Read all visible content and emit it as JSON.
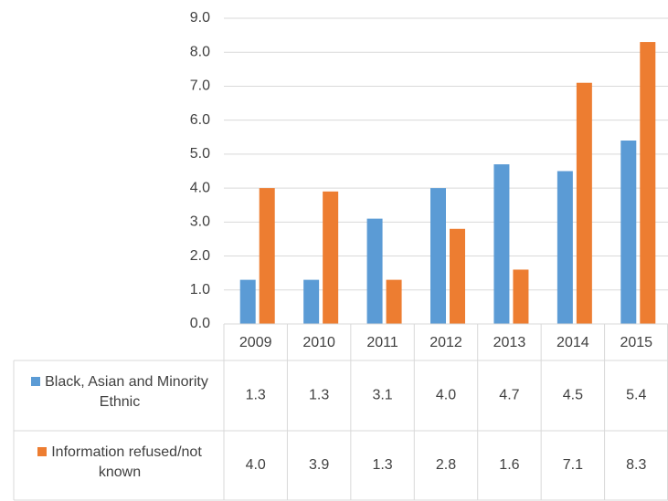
{
  "chart_data": {
    "type": "bar",
    "categories": [
      "2009",
      "2010",
      "2011",
      "2012",
      "2013",
      "2014",
      "2015"
    ],
    "series": [
      {
        "name": "Black, Asian and Minority Ethnic",
        "color": "#5b9bd5",
        "values": [
          1.3,
          1.3,
          3.1,
          4.0,
          4.7,
          4.5,
          5.4
        ],
        "value_labels": [
          "1.3",
          "1.3",
          "3.1",
          "4.0",
          "4.7",
          "4.5",
          "5.4"
        ]
      },
      {
        "name": "Information refused/not known",
        "color": "#ed7d31",
        "values": [
          4.0,
          3.9,
          1.3,
          2.8,
          1.6,
          7.1,
          8.3
        ],
        "value_labels": [
          "4.0",
          "3.9",
          "1.3",
          "2.8",
          "1.6",
          "7.1",
          "8.3"
        ]
      }
    ],
    "ylim": [
      0,
      9
    ],
    "yticks": [
      {
        "value": 0,
        "label": "0.0"
      },
      {
        "value": 1,
        "label": "1.0"
      },
      {
        "value": 2,
        "label": "2.0"
      },
      {
        "value": 3,
        "label": "3.0"
      },
      {
        "value": 4,
        "label": "4.0"
      },
      {
        "value": 5,
        "label": "5.0"
      },
      {
        "value": 6,
        "label": "6.0"
      },
      {
        "value": 7,
        "label": "7.0"
      },
      {
        "value": 8,
        "label": "8.0"
      },
      {
        "value": 9,
        "label": "9.0"
      }
    ],
    "grid": true
  }
}
